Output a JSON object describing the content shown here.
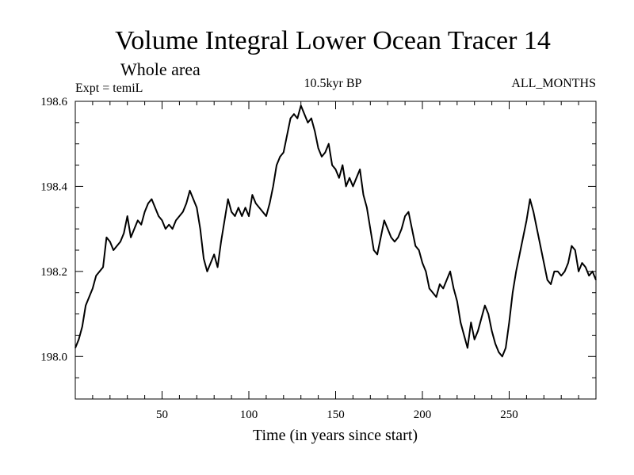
{
  "chart_data": {
    "type": "line",
    "title": "Volume Integral Lower Ocean Tracer 14",
    "subtitle": "Whole area",
    "annotations": {
      "left": "Expt = temiL",
      "center": "10.5kyr BP",
      "right": "ALL_MONTHS"
    },
    "xlabel": "Time (in years since start)",
    "ylabel": "",
    "xlim": [
      0,
      300
    ],
    "ylim": [
      197.9,
      198.6
    ],
    "x_ticks": [
      50,
      100,
      150,
      200,
      250
    ],
    "x_tick_labels": [
      "50",
      "100",
      "150",
      "200",
      "250"
    ],
    "y_ticks": [
      198.0,
      198.2,
      198.4,
      198.6
    ],
    "y_tick_labels": [
      "198.0",
      "198.2",
      "198.4",
      "198.6"
    ],
    "grid": false,
    "series": [
      {
        "name": "Tracer 14",
        "x": [
          0,
          2,
          4,
          6,
          8,
          10,
          12,
          14,
          16,
          18,
          20,
          22,
          24,
          26,
          28,
          30,
          32,
          34,
          36,
          38,
          40,
          42,
          44,
          46,
          48,
          50,
          52,
          54,
          56,
          58,
          60,
          62,
          64,
          66,
          68,
          70,
          72,
          74,
          76,
          78,
          80,
          82,
          84,
          86,
          88,
          90,
          92,
          94,
          96,
          98,
          100,
          102,
          104,
          106,
          108,
          110,
          112,
          114,
          116,
          118,
          120,
          122,
          124,
          126,
          128,
          130,
          132,
          134,
          136,
          138,
          140,
          142,
          144,
          146,
          148,
          150,
          152,
          154,
          156,
          158,
          160,
          162,
          164,
          166,
          168,
          170,
          172,
          174,
          176,
          178,
          180,
          182,
          184,
          186,
          188,
          190,
          192,
          194,
          196,
          198,
          200,
          202,
          204,
          206,
          208,
          210,
          212,
          214,
          216,
          218,
          220,
          222,
          224,
          226,
          228,
          230,
          232,
          234,
          236,
          238,
          240,
          242,
          244,
          246,
          248,
          250,
          252,
          254,
          256,
          258,
          260,
          262,
          264,
          266,
          268,
          270,
          272,
          274,
          276,
          278,
          280,
          282,
          284,
          286,
          288,
          290,
          292,
          294,
          296,
          298,
          300
        ],
        "values": [
          198.02,
          198.04,
          198.07,
          198.12,
          198.14,
          198.16,
          198.19,
          198.2,
          198.21,
          198.28,
          198.27,
          198.25,
          198.26,
          198.27,
          198.29,
          198.33,
          198.28,
          198.3,
          198.32,
          198.31,
          198.34,
          198.36,
          198.37,
          198.35,
          198.33,
          198.32,
          198.3,
          198.31,
          198.3,
          198.32,
          198.33,
          198.34,
          198.36,
          198.39,
          198.37,
          198.35,
          198.3,
          198.23,
          198.2,
          198.22,
          198.24,
          198.21,
          198.27,
          198.32,
          198.37,
          198.34,
          198.33,
          198.35,
          198.33,
          198.35,
          198.33,
          198.38,
          198.36,
          198.35,
          198.34,
          198.33,
          198.36,
          198.4,
          198.45,
          198.47,
          198.48,
          198.52,
          198.56,
          198.57,
          198.56,
          198.59,
          198.57,
          198.55,
          198.56,
          198.53,
          198.49,
          198.47,
          198.48,
          198.5,
          198.45,
          198.44,
          198.42,
          198.45,
          198.4,
          198.42,
          198.4,
          198.42,
          198.44,
          198.38,
          198.35,
          198.3,
          198.25,
          198.24,
          198.28,
          198.32,
          198.3,
          198.28,
          198.27,
          198.28,
          198.3,
          198.33,
          198.34,
          198.3,
          198.26,
          198.25,
          198.22,
          198.2,
          198.16,
          198.15,
          198.14,
          198.17,
          198.16,
          198.18,
          198.2,
          198.16,
          198.13,
          198.08,
          198.05,
          198.02,
          198.08,
          198.04,
          198.06,
          198.09,
          198.12,
          198.1,
          198.06,
          198.03,
          198.01,
          198.0,
          198.02,
          198.08,
          198.15,
          198.2,
          198.24,
          198.28,
          198.32,
          198.37,
          198.34,
          198.3,
          198.26,
          198.22,
          198.18,
          198.17,
          198.2,
          198.2,
          198.19,
          198.2,
          198.22,
          198.26,
          198.25,
          198.2,
          198.22,
          198.21,
          198.19,
          198.2,
          198.18
        ]
      }
    ]
  }
}
